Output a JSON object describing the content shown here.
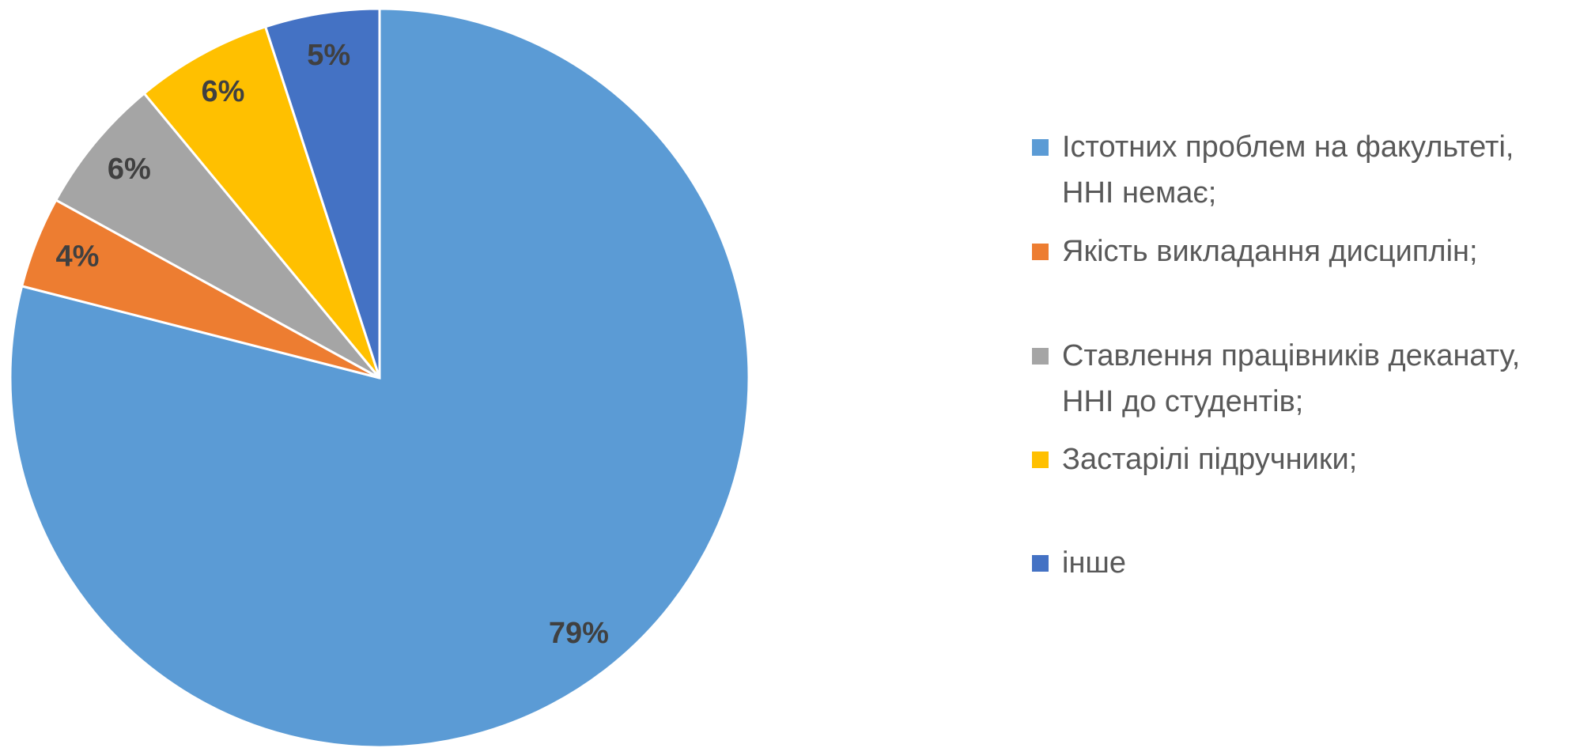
{
  "chart_data": {
    "type": "pie",
    "categories": [
      "Істотних проблем на факультеті, ННІ немає;",
      "Якість викладання дисциплін;",
      "Ставлення працівників деканату, ННІ до студентів;",
      "Застарілі підручники;",
      "інше"
    ],
    "values": [
      79,
      4,
      6,
      6,
      5
    ],
    "value_labels": [
      "79%",
      "4%",
      "6%",
      "6%",
      "5%"
    ],
    "colors": [
      "#5b9bd5",
      "#ed7d31",
      "#a5a5a5",
      "#ffc000",
      "#4472c4"
    ],
    "legend": "right"
  }
}
